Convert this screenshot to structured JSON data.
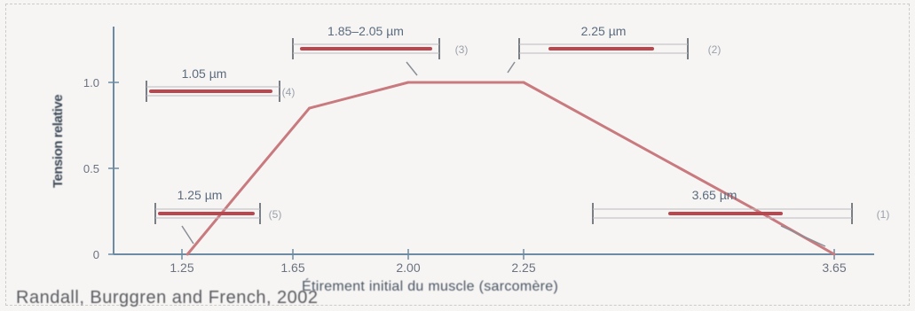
{
  "chart_data": {
    "type": "line",
    "xlabel": "Étirement initial du muscle (sarcomère)",
    "ylabel": "Tension relative",
    "x_ticks": [
      "1.25",
      "1.65",
      "2.00",
      "2.25",
      "3.65"
    ],
    "y_ticks": [
      "0",
      "0.5",
      "1.0"
    ],
    "xlim": [
      1.1,
      3.7
    ],
    "ylim": [
      0,
      1.25
    ],
    "series": [
      {
        "x": [
          1.27,
          1.45,
          1.7,
          2.0,
          2.25,
          3.35,
          3.65
        ],
        "y": [
          0.0,
          0.35,
          0.85,
          1.0,
          1.0,
          0.22,
          0.0
        ]
      }
    ],
    "annotations": [
      {
        "label": "1.05 µm",
        "number": "(4)"
      },
      {
        "label": "1.85–2.05 µm",
        "number": "(3)"
      },
      {
        "label": "2.25 µm",
        "number": "(2)"
      },
      {
        "label": "1.25 µm",
        "number": "(5)"
      },
      {
        "label": "3.65 µm",
        "number": "(1)"
      }
    ]
  },
  "credit": "Randall, Burggren and French, 2002",
  "colors": {
    "curve": "#c87a7e",
    "axis": "#6d8ba3",
    "filament": "#b9474d"
  }
}
